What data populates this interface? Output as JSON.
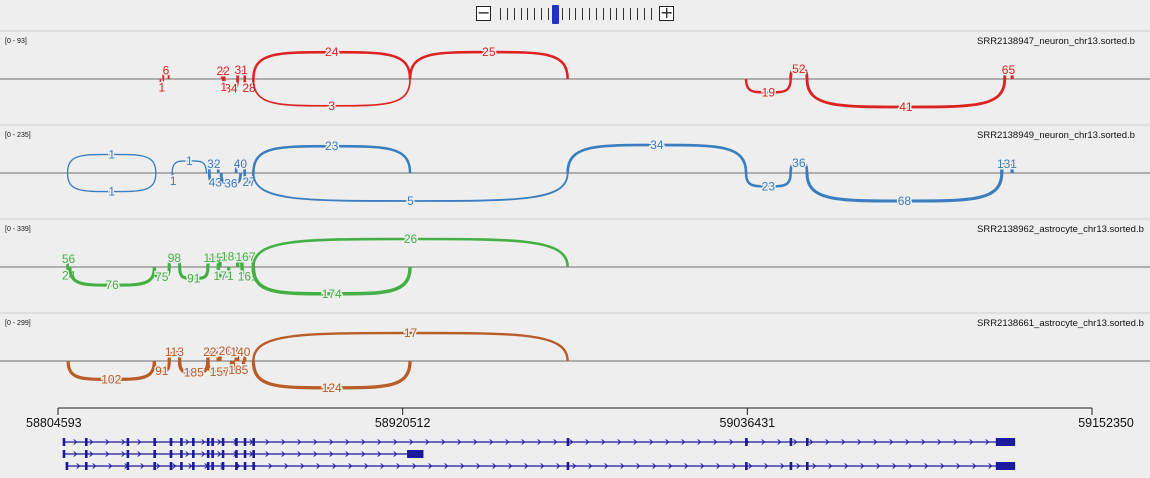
{
  "zoom": {
    "minus_label": "−",
    "plus_label": "+",
    "levels": 23,
    "current_level": 8
  },
  "tracks": [
    {
      "name": "SRR2138947_neuron_chr13.sorted.b",
      "range": "[0 - 93]",
      "color": "#dd2222",
      "junctions": [
        {
          "from": 58839000,
          "to": 58840000,
          "count": "1",
          "side": "below"
        },
        {
          "from": 58840000,
          "to": 58841800,
          "count": "6",
          "side": "above"
        },
        {
          "from": 58859800,
          "to": 58860500,
          "count": "22",
          "side": "above"
        },
        {
          "from": 58860500,
          "to": 58865000,
          "count": "34",
          "side": "below"
        },
        {
          "from": 58860000,
          "to": 58860500,
          "count": "1",
          "side": "below"
        },
        {
          "from": 58865000,
          "to": 58867400,
          "count": "31",
          "side": "above"
        },
        {
          "from": 58867400,
          "to": 58870300,
          "count": "28",
          "side": "below"
        },
        {
          "from": 58870300,
          "to": 58923000,
          "count": "3",
          "side": "below"
        },
        {
          "from": 58870300,
          "to": 58923000,
          "count": "24",
          "side": "above"
        },
        {
          "from": 58923000,
          "to": 58976000,
          "count": "25",
          "side": "above"
        },
        {
          "from": 59036000,
          "to": 59051000,
          "count": "19",
          "side": "below"
        },
        {
          "from": 59051000,
          "to": 59056500,
          "count": "52",
          "side": "above"
        },
        {
          "from": 59056500,
          "to": 59123000,
          "count": "41",
          "side": "below"
        },
        {
          "from": 59123000,
          "to": 59125500,
          "count": "65",
          "side": "above"
        }
      ]
    },
    {
      "name": "SRR2138949_neuron_chr13.sorted.b",
      "range": "[0 - 235]",
      "color": "#3a7ec0",
      "junctions": [
        {
          "from": 58807800,
          "to": 58837500,
          "count": "1",
          "side": "below"
        },
        {
          "from": 58807800,
          "to": 58837500,
          "count": "1",
          "side": "above"
        },
        {
          "from": 58843000,
          "to": 58843200,
          "count": "1",
          "side": "below"
        },
        {
          "from": 58843000,
          "to": 58854500,
          "count": "1",
          "side": "above"
        },
        {
          "from": 58855500,
          "to": 58858500,
          "count": "32",
          "side": "above"
        },
        {
          "from": 58855500,
          "to": 58859500,
          "count": "43",
          "side": "below"
        },
        {
          "from": 58859500,
          "to": 58866000,
          "count": "36",
          "side": "below"
        },
        {
          "from": 58864500,
          "to": 58867400,
          "count": "40",
          "side": "above"
        },
        {
          "from": 58867400,
          "to": 58870300,
          "count": "27",
          "side": "below"
        },
        {
          "from": 58870300,
          "to": 58923000,
          "count": "23",
          "side": "above"
        },
        {
          "from": 58870300,
          "to": 58976000,
          "count": "5",
          "side": "below"
        },
        {
          "from": 58976000,
          "to": 59036000,
          "count": "34",
          "side": "above"
        },
        {
          "from": 59036000,
          "to": 59051000,
          "count": "23",
          "side": "below"
        },
        {
          "from": 59051000,
          "to": 59056500,
          "count": "36",
          "side": "above"
        },
        {
          "from": 59056500,
          "to": 59122000,
          "count": "68",
          "side": "below"
        },
        {
          "from": 59122000,
          "to": 59125500,
          "count": "131",
          "side": "above"
        }
      ]
    },
    {
      "name": "SRR2138962_astrocyte_chr13.sorted.b",
      "range": "[0 - 339]",
      "color": "#44b044",
      "junctions": [
        {
          "from": 58807800,
          "to": 58807800,
          "count": "56",
          "side": "above"
        },
        {
          "from": 58807800,
          "to": 58808600,
          "count": "24",
          "side": "below"
        },
        {
          "from": 58808600,
          "to": 58837000,
          "count": "76",
          "side": "below"
        },
        {
          "from": 58837000,
          "to": 58842000,
          "count": "75",
          "side": "below"
        },
        {
          "from": 58842000,
          "to": 58845500,
          "count": "98",
          "side": "above"
        },
        {
          "from": 58845500,
          "to": 58855000,
          "count": "91",
          "side": "below"
        },
        {
          "from": 58855000,
          "to": 58858500,
          "count": "115",
          "side": "above"
        },
        {
          "from": 58858500,
          "to": 58862000,
          "count": "171",
          "side": "below"
        },
        {
          "from": 58859000,
          "to": 58866500,
          "count": "186",
          "side": "above"
        },
        {
          "from": 58865000,
          "to": 58870300,
          "count": "167",
          "side": "above"
        },
        {
          "from": 58866500,
          "to": 58870300,
          "count": "161",
          "side": "below"
        },
        {
          "from": 58870300,
          "to": 58923000,
          "count": "174",
          "side": "below"
        },
        {
          "from": 58870300,
          "to": 58976000,
          "count": "26",
          "side": "above"
        }
      ]
    },
    {
      "name": "SRR2138661_astrocyte_chr13.sorted.b",
      "range": "[0 - 299]",
      "color": "#b85c28",
      "junctions": [
        {
          "from": 58808000,
          "to": 58837000,
          "count": "102",
          "side": "below"
        },
        {
          "from": 58837000,
          "to": 58842000,
          "count": "91",
          "side": "below"
        },
        {
          "from": 58842000,
          "to": 58845500,
          "count": "113",
          "side": "above"
        },
        {
          "from": 58845500,
          "to": 58855000,
          "count": "185",
          "side": "below"
        },
        {
          "from": 58855000,
          "to": 58858500,
          "count": "227",
          "side": "above"
        },
        {
          "from": 58855000,
          "to": 58863000,
          "count": "157",
          "side": "below"
        },
        {
          "from": 58859000,
          "to": 58865000,
          "count": "208",
          "side": "above"
        },
        {
          "from": 58864500,
          "to": 58867400,
          "count": "140",
          "side": "above"
        },
        {
          "from": 58863500,
          "to": 58867000,
          "count": "185",
          "side": "below"
        },
        {
          "from": 58870300,
          "to": 58923000,
          "count": "124",
          "side": "below"
        },
        {
          "from": 58870300,
          "to": 58976000,
          "count": "17",
          "side": "above"
        }
      ]
    }
  ],
  "ruler": {
    "tick_labels": [
      "58804593",
      "58920512",
      "59036431",
      "59152350"
    ],
    "start": 58804593,
    "end": 59152350
  },
  "gene_model": {
    "color": "#1a1a9a",
    "transcripts": [
      {
        "start": 58806500,
        "end": 59126500,
        "exons": [
          58806500,
          58814000,
          58828000,
          58837000,
          58842500,
          58846000,
          58850000,
          58855000,
          58856500,
          58860000,
          58864500,
          58867400,
          58870300,
          58976000,
          59036000,
          59051000,
          59056500
        ],
        "thick_end_from": 59120000
      },
      {
        "start": 58806500,
        "end": 58927500,
        "exons": [
          58806500,
          58814000,
          58828000,
          58837000,
          58842500,
          58846000,
          58850000,
          58855000,
          58856500,
          58860000,
          58864500,
          58867400,
          58870300
        ],
        "thick_end_from": 58922000
      },
      {
        "start": 58807500,
        "end": 59126500,
        "exons": [
          58807500,
          58814000,
          58828000,
          58837000,
          58842500,
          58846000,
          58850000,
          58855000,
          58856500,
          58860000,
          58864500,
          58867400,
          58870300,
          58976000,
          59036000,
          59051000,
          59056500
        ],
        "thick_end_from": 59120000
      }
    ]
  }
}
